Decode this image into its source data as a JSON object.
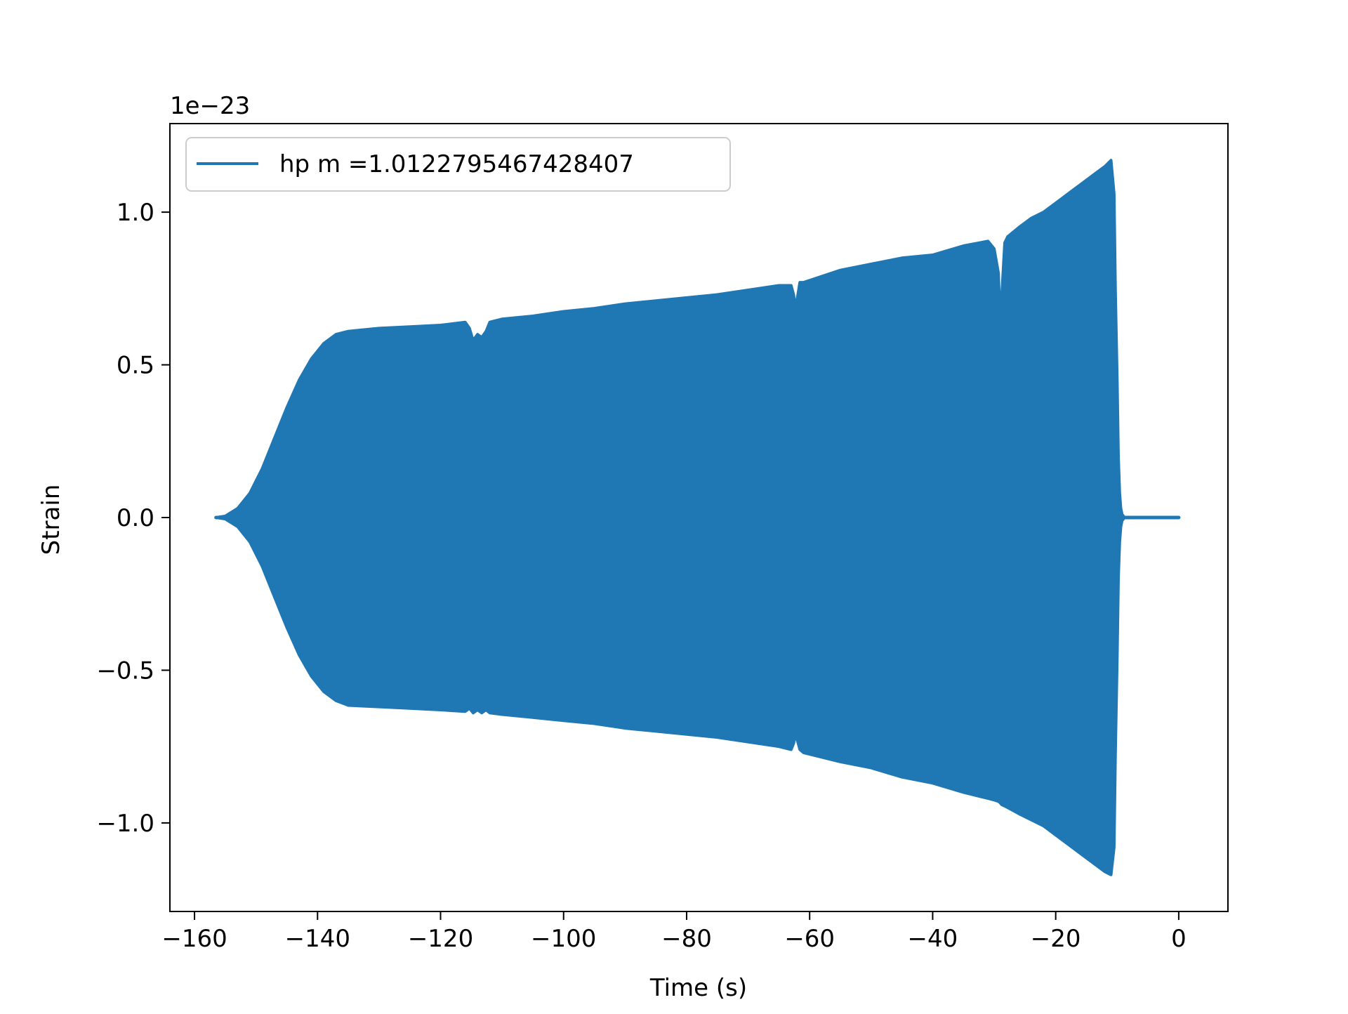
{
  "chart_data": {
    "type": "area",
    "title": "",
    "xlabel": "Time (s)",
    "ylabel": "Strain",
    "y_offset_text": "1e−23",
    "xlim": [
      -164,
      8
    ],
    "ylim": [
      -1.29,
      1.29
    ],
    "xticks": [
      -160,
      -140,
      -120,
      -100,
      -80,
      -60,
      -40,
      -20,
      0
    ],
    "xtick_labels": [
      "−160",
      "−140",
      "−120",
      "−100",
      "−80",
      "−60",
      "−40",
      "−20",
      "0"
    ],
    "yticks": [
      -1.0,
      -0.5,
      0.0,
      0.5,
      1.0
    ],
    "ytick_labels": [
      "−1.0",
      "−0.5",
      "0.0",
      "0.5",
      "1.0"
    ],
    "grid": false,
    "legend_position": "top-left",
    "series": [
      {
        "name": "hp m =1.0122795467428407",
        "color": "#1f77b4",
        "description_kind": "oscillating waveform envelope",
        "upper_envelope": {
          "x": [
            -156.5,
            -155,
            -153,
            -151,
            -149,
            -147,
            -145,
            -143,
            -141,
            -139,
            -137,
            -135,
            -130,
            -125,
            -120,
            -116,
            -115.3,
            -114.7,
            -114,
            -113.3,
            -112.6,
            -112,
            -110,
            -105,
            -100,
            -95,
            -90,
            -85,
            -80,
            -75,
            -70,
            -65,
            -63,
            -62.6,
            -62.3,
            -62,
            -61.6,
            -61,
            -58,
            -55,
            -50,
            -45,
            -40,
            -35,
            -31,
            -30,
            -29.3,
            -29,
            -28.8,
            -28.3,
            -27.8,
            -26,
            -24,
            -22,
            -20,
            -18,
            -16,
            -14,
            -12,
            -11,
            -10.5,
            -10.3,
            -10,
            -9.8,
            -9.6,
            -9.4,
            -9.2,
            -9,
            -8.8,
            -8.5,
            -7.5,
            -5,
            -2,
            0
          ],
          "y": [
            0.0,
            0.005,
            0.03,
            0.08,
            0.16,
            0.26,
            0.36,
            0.45,
            0.52,
            0.57,
            0.6,
            0.61,
            0.62,
            0.625,
            0.63,
            0.64,
            0.62,
            0.58,
            0.6,
            0.59,
            0.61,
            0.64,
            0.65,
            0.66,
            0.675,
            0.685,
            0.7,
            0.71,
            0.72,
            0.73,
            0.745,
            0.76,
            0.76,
            0.73,
            0.69,
            0.72,
            0.77,
            0.77,
            0.79,
            0.81,
            0.83,
            0.85,
            0.86,
            0.89,
            0.905,
            0.88,
            0.8,
            0.62,
            0.72,
            0.9,
            0.92,
            0.95,
            0.98,
            1.0,
            1.03,
            1.06,
            1.09,
            1.12,
            1.15,
            1.17,
            1.06,
            0.75,
            0.45,
            0.2,
            0.08,
            0.03,
            0.01,
            0.005,
            0.0,
            0.0,
            0.0,
            0.0,
            0.0,
            0.0
          ],
          "note_fill": "band"
        },
        "lower_envelope": {
          "x": [
            -156.5,
            -155,
            -153,
            -151,
            -149,
            -147,
            -145,
            -143,
            -141,
            -139,
            -137,
            -135,
            -130,
            -125,
            -120,
            -116,
            -115.3,
            -114.7,
            -114,
            -113.3,
            -112.6,
            -112,
            -110,
            -105,
            -100,
            -95,
            -90,
            -85,
            -80,
            -75,
            -70,
            -65,
            -63,
            -62.6,
            -62.3,
            -62,
            -61.6,
            -61,
            -58,
            -55,
            -50,
            -45,
            -40,
            -35,
            -31,
            -30,
            -29.3,
            -29,
            -28.8,
            -28.3,
            -27.8,
            -26,
            -24,
            -22,
            -20,
            -18,
            -16,
            -14,
            -12,
            -11,
            -10.5,
            -10.3,
            -10,
            -9.8,
            -9.6,
            -9.4,
            -9.2,
            -9,
            -8.8,
            -8.5,
            -7.5,
            -5,
            -2,
            0
          ],
          "y": [
            0.0,
            -0.005,
            -0.03,
            -0.08,
            -0.16,
            -0.26,
            -0.36,
            -0.45,
            -0.52,
            -0.57,
            -0.6,
            -0.615,
            -0.62,
            -0.625,
            -0.63,
            -0.635,
            -0.625,
            -0.64,
            -0.63,
            -0.64,
            -0.63,
            -0.64,
            -0.645,
            -0.655,
            -0.665,
            -0.675,
            -0.69,
            -0.7,
            -0.71,
            -0.72,
            -0.735,
            -0.75,
            -0.76,
            -0.74,
            -0.71,
            -0.73,
            -0.76,
            -0.77,
            -0.785,
            -0.8,
            -0.82,
            -0.85,
            -0.87,
            -0.9,
            -0.92,
            -0.925,
            -0.93,
            -0.935,
            -0.94,
            -0.945,
            -0.95,
            -0.97,
            -0.99,
            -1.01,
            -1.04,
            -1.07,
            -1.1,
            -1.13,
            -1.16,
            -1.17,
            -1.08,
            -0.78,
            -0.46,
            -0.2,
            -0.08,
            -0.03,
            -0.01,
            -0.005,
            0.0,
            0.0,
            0.0,
            0.0,
            0.0,
            0.0
          ]
        }
      }
    ]
  }
}
